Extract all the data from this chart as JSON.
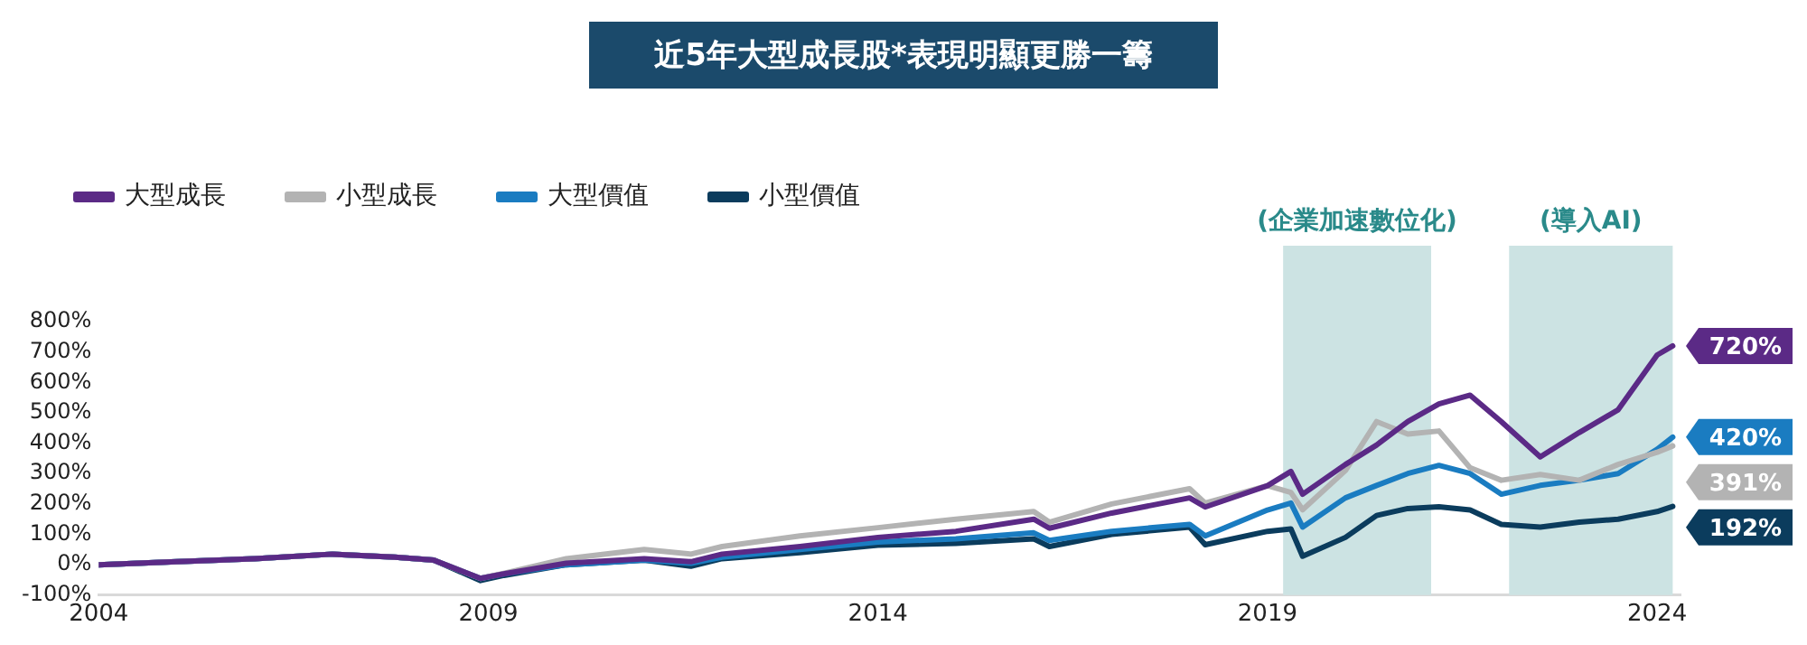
{
  "chart_data": {
    "type": "line",
    "title": "近5年大型成長股*表現明顯更勝一籌",
    "x": [
      2004,
      2005,
      2006,
      2007,
      2007.8,
      2008.3,
      2008.9,
      2009.2,
      2010,
      2011,
      2011.6,
      2012,
      2013,
      2014,
      2015,
      2016,
      2016.2,
      2017,
      2018,
      2018.2,
      2019,
      2019.3,
      2019.45,
      2020,
      2020.4,
      2020.8,
      2021.2,
      2021.6,
      2022,
      2022.5,
      2023,
      2023.5,
      2024,
      2024.2
    ],
    "series": [
      {
        "name": "大型成長",
        "color": "#5b2a86",
        "values": [
          0,
          10,
          20,
          35,
          25,
          15,
          -45,
          -30,
          5,
          20,
          10,
          35,
          60,
          90,
          110,
          150,
          120,
          170,
          220,
          190,
          260,
          307,
          232,
          330,
          394,
          471,
          529,
          558,
          471,
          355,
          435,
          510,
          690,
          720
        ],
        "value_labels": [
          null,
          null,
          null,
          null,
          null,
          null,
          null,
          null,
          null,
          null,
          null,
          null,
          null,
          null,
          null,
          null,
          null,
          null,
          null,
          null,
          null,
          null,
          null,
          null,
          null,
          null,
          null,
          null,
          null,
          null,
          null,
          null,
          null,
          "720%"
        ]
      },
      {
        "name": "小型成長",
        "color": "#b3b3b3",
        "values": [
          0,
          10,
          20,
          35,
          25,
          15,
          -45,
          -28,
          20,
          50,
          35,
          60,
          95,
          122,
          150,
          175,
          140,
          200,
          250,
          203,
          260,
          238,
          181,
          310,
          471,
          430,
          440,
          319,
          278,
          297,
          278,
          330,
          370,
          391
        ],
        "value_labels": [
          null,
          null,
          null,
          null,
          null,
          null,
          null,
          null,
          null,
          null,
          null,
          null,
          null,
          null,
          null,
          null,
          null,
          null,
          null,
          null,
          null,
          null,
          null,
          null,
          null,
          null,
          null,
          null,
          null,
          null,
          null,
          null,
          null,
          "391%"
        ]
      },
      {
        "name": "大型價值",
        "color": "#1a7cc1",
        "values": [
          0,
          10,
          20,
          35,
          25,
          15,
          -45,
          -30,
          0,
          15,
          5,
          25,
          50,
          75,
          85,
          105,
          80,
          110,
          133,
          95,
          180,
          203,
          124,
          220,
          261,
          300,
          327,
          300,
          232,
          261,
          278,
          300,
          380,
          420
        ],
        "value_labels": [
          null,
          null,
          null,
          null,
          null,
          null,
          null,
          null,
          null,
          null,
          null,
          null,
          null,
          null,
          null,
          null,
          null,
          null,
          null,
          null,
          null,
          null,
          null,
          null,
          null,
          null,
          null,
          null,
          null,
          null,
          null,
          null,
          null,
          "420%"
        ]
      },
      {
        "name": "小型價值",
        "color": "#0b3c5d",
        "values": [
          0,
          10,
          20,
          35,
          25,
          15,
          -52,
          -35,
          0,
          15,
          -5,
          20,
          40,
          64,
          70,
          85,
          60,
          100,
          124,
          66,
          110,
          118,
          28,
          90,
          162,
          185,
          191,
          180,
          133,
          124,
          140,
          150,
          175,
          192
        ],
        "value_labels": [
          null,
          null,
          null,
          null,
          null,
          null,
          null,
          null,
          null,
          null,
          null,
          null,
          null,
          null,
          null,
          null,
          null,
          null,
          null,
          null,
          null,
          null,
          null,
          null,
          null,
          null,
          null,
          null,
          null,
          null,
          null,
          null,
          null,
          "192%"
        ]
      }
    ],
    "xlim": [
      2004,
      2024.3
    ],
    "xticks": [
      2004,
      2009,
      2014,
      2019,
      2024
    ],
    "ylim": [
      -100,
      800
    ],
    "yticks": [
      {
        "value": -100,
        "label": "-100%"
      },
      {
        "value": 0,
        "label": "0%"
      },
      {
        "value": 100,
        "label": "100%"
      },
      {
        "value": 200,
        "label": "200%"
      },
      {
        "value": 300,
        "label": "300%"
      },
      {
        "value": 400,
        "label": "400%"
      },
      {
        "value": 500,
        "label": "500%"
      },
      {
        "value": 600,
        "label": "600%"
      },
      {
        "value": 700,
        "label": "700%"
      },
      {
        "value": 800,
        "label": "800%"
      }
    ],
    "bands": [
      {
        "axis": "x",
        "from": 2019.2,
        "to": 2021.1,
        "label": "(企業加速數位化)",
        "color": "#cce3e3"
      },
      {
        "axis": "x",
        "from": 2022.1,
        "to": 2024.2,
        "label": "(導入AI)",
        "color": "#cce3e3"
      }
    ],
    "grid": false,
    "legend": "top left",
    "marker": "none",
    "line_style": "solid"
  }
}
